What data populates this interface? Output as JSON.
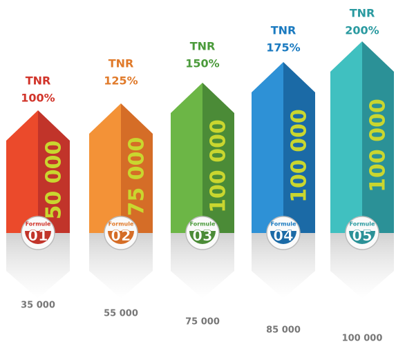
{
  "items": [
    {
      "tnr": "TNR",
      "rate": "100%",
      "amount": "50 000",
      "formule": "Formule",
      "number": "01",
      "price": "35 000",
      "color": "#eb4a2b",
      "dark": "#c1342a",
      "text_color": "#d1342a"
    },
    {
      "tnr": "TNR",
      "rate": "125%",
      "amount": "75 000",
      "formule": "Formule",
      "number": "02",
      "price": "55 000",
      "color": "#f39237",
      "dark": "#d56d27",
      "text_color": "#e07a2a"
    },
    {
      "tnr": "TNR",
      "rate": "150%",
      "amount": "100 000",
      "formule": "Formule",
      "number": "03",
      "price": "75 000",
      "color": "#6cb646",
      "dark": "#4b8b37",
      "text_color": "#4a9a3a"
    },
    {
      "tnr": "TNR",
      "rate": "175%",
      "amount": "100 000",
      "formule": "Formule",
      "number": "04",
      "price": "85 000",
      "color": "#2e91d6",
      "dark": "#1b6aa6",
      "text_color": "#1a7ac0"
    },
    {
      "tnr": "TNR",
      "rate": "200%",
      "amount": "100 000",
      "formule": "Formule",
      "number": "05",
      "price": "100 000",
      "color": "#40c0c0",
      "dark": "#2b9197",
      "text_color": "#2a9aa0"
    }
  ]
}
